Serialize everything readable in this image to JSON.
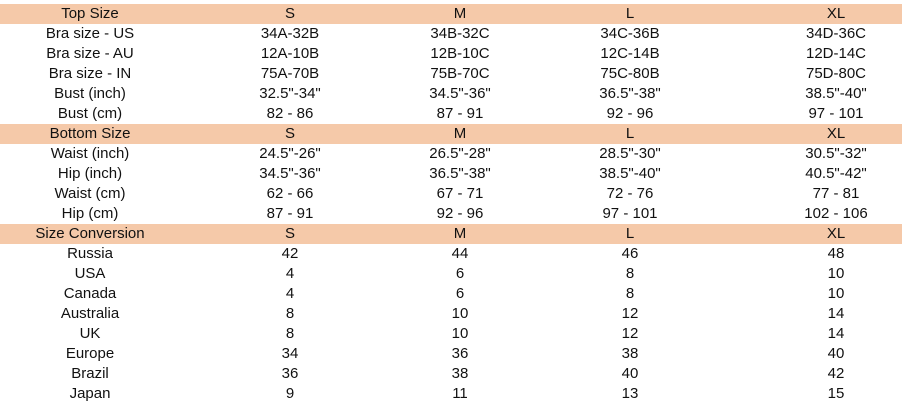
{
  "colors": {
    "header_bg": "#f5c9a9"
  },
  "sections": [
    {
      "header": [
        "Top Size",
        "S",
        "M",
        "L",
        "XL"
      ],
      "rows": [
        [
          "Bra size - US",
          "34A-32B",
          "34B-32C",
          "34C-36B",
          "34D-36C"
        ],
        [
          "Bra size - AU",
          "12A-10B",
          "12B-10C",
          "12C-14B",
          "12D-14C"
        ],
        [
          "Bra size - IN",
          "75A-70B",
          "75B-70C",
          "75C-80B",
          "75D-80C"
        ],
        [
          "Bust (inch)",
          "32.5\"-34\"",
          "34.5\"-36\"",
          "36.5\"-38\"",
          "38.5\"-40\""
        ],
        [
          "Bust (cm)",
          "82 - 86",
          "87 - 91",
          "92 - 96",
          "97 - 101"
        ]
      ]
    },
    {
      "header": [
        "Bottom Size",
        "S",
        "M",
        "L",
        "XL"
      ],
      "rows": [
        [
          "Waist (inch)",
          "24.5\"-26\"",
          "26.5\"-28\"",
          "28.5\"-30\"",
          "30.5\"-32\""
        ],
        [
          "Hip (inch)",
          "34.5\"-36\"",
          "36.5\"-38\"",
          "38.5\"-40\"",
          "40.5\"-42\""
        ],
        [
          "Waist (cm)",
          "62 - 66",
          "67 - 71",
          "72 - 76",
          "77 - 81"
        ],
        [
          "Hip (cm)",
          "87 - 91",
          "92 - 96",
          "97 - 101",
          "102 - 106"
        ]
      ]
    },
    {
      "header": [
        "Size Conversion",
        "S",
        "M",
        "L",
        "XL"
      ],
      "rows": [
        [
          "Russia",
          "42",
          "44",
          "46",
          "48"
        ],
        [
          "USA",
          "4",
          "6",
          "8",
          "10"
        ],
        [
          "Canada",
          "4",
          "6",
          "8",
          "10"
        ],
        [
          "Australia",
          "8",
          "10",
          "12",
          "14"
        ],
        [
          "UK",
          "8",
          "10",
          "12",
          "14"
        ],
        [
          "Europe",
          "34",
          "36",
          "38",
          "40"
        ],
        [
          "Brazil",
          "36",
          "38",
          "40",
          "42"
        ],
        [
          "Japan",
          "9",
          "11",
          "13",
          "15"
        ]
      ]
    }
  ]
}
